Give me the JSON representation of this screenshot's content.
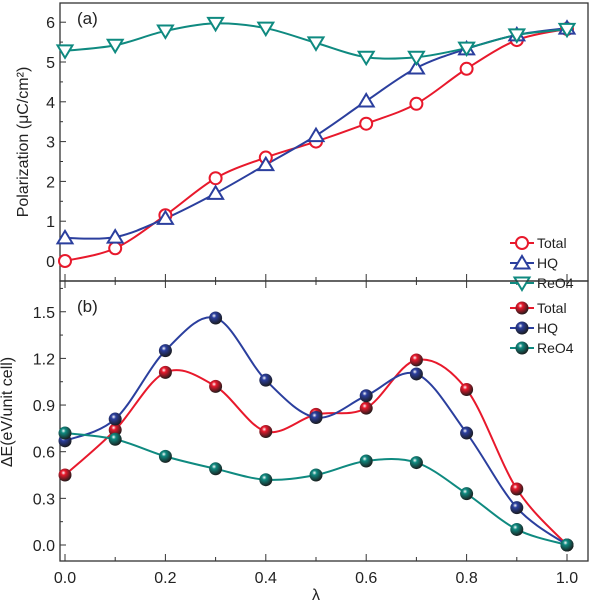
{
  "chart_data": [
    {
      "type": "line",
      "panel_label": "(a)",
      "xlabel": "",
      "ylabel": "Polarization (μC/cm²)",
      "x": [
        0.0,
        0.1,
        0.2,
        0.3,
        0.4,
        0.5,
        0.6,
        0.7,
        0.8,
        0.9,
        1.0
      ],
      "xlim": [
        -0.05,
        1.07
      ],
      "ylim": [
        -0.6,
        6.5
      ],
      "yticks": [
        "0",
        "1",
        "2",
        "3",
        "4",
        "5",
        "6"
      ],
      "grid": false,
      "legend_position": "bottom-right",
      "series": [
        {
          "name": "Total",
          "marker": "open-circle",
          "color": "#e8192c",
          "values": [
            0,
            0.32,
            1.15,
            2.08,
            2.6,
            3.0,
            3.45,
            3.95,
            4.83,
            5.55,
            5.83
          ]
        },
        {
          "name": "HQ",
          "marker": "open-triangle-up",
          "color": "#2b3f9e",
          "values": [
            0.58,
            0.6,
            1.07,
            1.7,
            2.42,
            3.15,
            4.02,
            4.85,
            5.33,
            5.68,
            5.85
          ]
        },
        {
          "name": "ReO4",
          "marker": "open-triangle-down",
          "color": "#0f8a80",
          "values": [
            5.28,
            5.42,
            5.78,
            5.97,
            5.85,
            5.48,
            5.12,
            5.12,
            5.35,
            5.68,
            5.82
          ]
        }
      ]
    },
    {
      "type": "line",
      "panel_label": "(b)",
      "xlabel": "λ",
      "ylabel": "ΔE(eV/unit cell)",
      "x": [
        0.0,
        0.1,
        0.2,
        0.3,
        0.4,
        0.5,
        0.6,
        0.7,
        0.8,
        0.9,
        1.0
      ],
      "xlim": [
        -0.05,
        1.07
      ],
      "ylim": [
        -0.1,
        1.65
      ],
      "xticks": [
        "0.0",
        "0.2",
        "0.4",
        "0.6",
        "0.8",
        "1.0"
      ],
      "yticks": [
        "0.0",
        "0.3",
        "0.6",
        "0.9",
        "1.2",
        "1.5"
      ],
      "grid": false,
      "legend_position": "top-right",
      "series": [
        {
          "name": "Total",
          "marker": "sphere",
          "color": "#e8192c",
          "values": [
            0.45,
            0.74,
            1.11,
            1.02,
            0.73,
            0.84,
            0.88,
            1.19,
            1.0,
            0.36,
            0.0
          ]
        },
        {
          "name": "HQ",
          "marker": "sphere",
          "color": "#2b3f9e",
          "values": [
            0.67,
            0.81,
            1.25,
            1.46,
            1.06,
            0.82,
            0.96,
            1.1,
            0.72,
            0.24,
            0.0
          ]
        },
        {
          "name": "ReO4",
          "marker": "sphere",
          "color": "#0f8a80",
          "values": [
            0.72,
            0.68,
            0.57,
            0.49,
            0.42,
            0.45,
            0.54,
            0.53,
            0.33,
            0.1,
            0.0
          ]
        }
      ]
    }
  ]
}
